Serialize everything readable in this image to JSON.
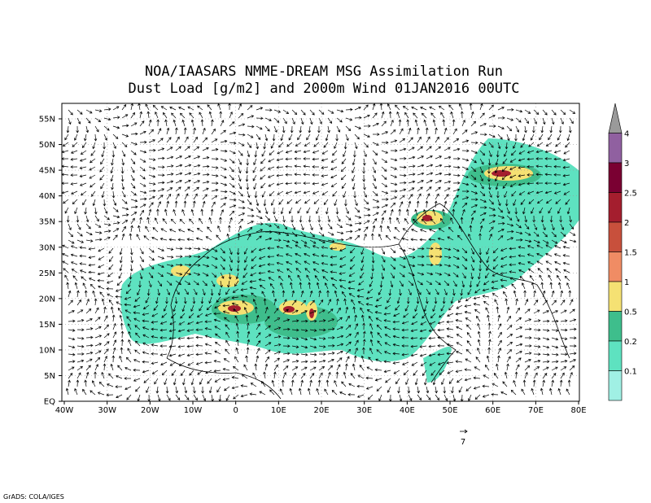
{
  "header": {
    "title_lines": [
      "NOA/IAASARS NMME-DREAM MSG Assimilation Run",
      "Dust Load [g/m2] and 2000m Wind 01JAN2016 00UTC"
    ]
  },
  "map": {
    "lat_labels": [
      "55N",
      "50N",
      "45N",
      "40N",
      "35N",
      "30N",
      "25N",
      "20N",
      "15N",
      "10N",
      "5N",
      "EQ"
    ],
    "lon_labels": [
      "40W",
      "30W",
      "20W",
      "10W",
      "0",
      "10E",
      "20E",
      "30E",
      "40E",
      "50E",
      "60E",
      "70E",
      "80E"
    ],
    "vector_reference": "7"
  },
  "colorbar": {
    "labels": [
      "4",
      "3",
      "2.5",
      "2",
      "1.5",
      "1",
      "0.5",
      "0.2",
      "0.1"
    ],
    "colors": [
      "#9a9a9a",
      "#9060a0",
      "#7a0032",
      "#a41e2e",
      "#c8503c",
      "#f08c64",
      "#f5e173",
      "#3ebe8c",
      "#5ee2c0",
      "#a0f0e4"
    ]
  },
  "footer": "GrADS: COLA/IGES"
}
